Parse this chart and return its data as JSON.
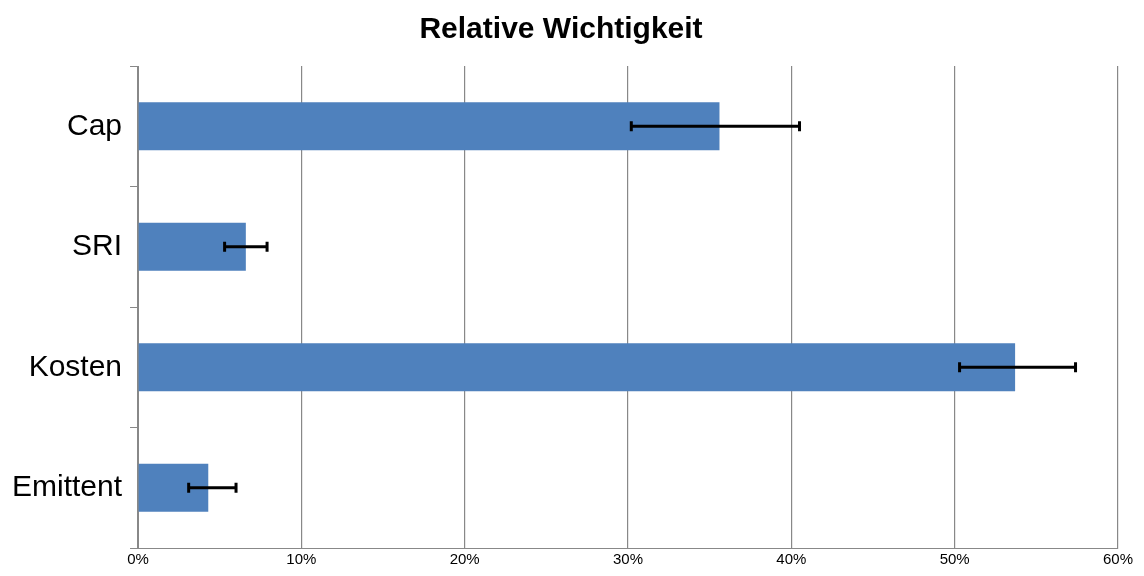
{
  "chart_data": {
    "type": "bar",
    "orientation": "horizontal",
    "title": "Relative Wichtigkeit",
    "categories": [
      "Cap",
      "SRI",
      "Kosten",
      "Emittent"
    ],
    "values": [
      35.6,
      6.6,
      53.7,
      4.3
    ],
    "errors": [
      [
        30.2,
        40.5
      ],
      [
        5.3,
        7.9
      ],
      [
        50.3,
        57.4
      ],
      [
        3.1,
        6.0
      ]
    ],
    "color": "#4f81bd",
    "xlim": [
      0,
      60
    ],
    "xticks": [
      {
        "value": 0,
        "label": "0%"
      },
      {
        "value": 10,
        "label": "10%"
      },
      {
        "value": 20,
        "label": "20%"
      },
      {
        "value": 30,
        "label": "30%"
      },
      {
        "value": 40,
        "label": "40%"
      },
      {
        "value": 50,
        "label": "50%"
      },
      {
        "value": 60,
        "label": "60%"
      }
    ],
    "grid": "x",
    "legend": false
  }
}
